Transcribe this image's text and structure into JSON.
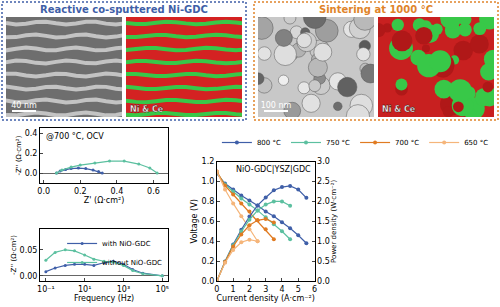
{
  "panels": [
    {
      "title": "Reactive co-sputtered Ni-GDC",
      "color": "#3f5fa8",
      "scale_bar": "40 nm",
      "map_label": "Ni & Ce"
    },
    {
      "title": "Sintering at 1000 °C",
      "color": "#e0842a",
      "scale_bar": "100 nm",
      "map_label": "Ni & Ce"
    }
  ],
  "chart_data": [
    {
      "type": "line",
      "annotation": "@700 °C, OCV",
      "x_label": "Z' (Ω·cm²)",
      "y_label": "-Z'' (Ω·cm²)",
      "xlim": [
        -0.02,
        0.68
      ],
      "xticks": [
        {
          "value": 0,
          "label": "0.0"
        },
        0.2,
        0.4,
        0.6
      ],
      "ylim": [
        -0.1,
        0.45
      ],
      "yticks": [
        {
          "value": 0,
          "label": "0.0"
        },
        0.2,
        0.4
      ],
      "grid": false,
      "marker": "circle",
      "line_style": "solid",
      "series": [
        {
          "name": "with NiO-GDC",
          "color": "#3f5fa8",
          "x": [
            0.07,
            0.09,
            0.12,
            0.15,
            0.19,
            0.23,
            0.27,
            0.3,
            0.32
          ],
          "values": [
            0,
            0.02,
            0.035,
            0.045,
            0.05,
            0.045,
            0.03,
            0.015,
            0
          ]
        },
        {
          "name": "without NiO-GDC",
          "color": "#5cc0a0",
          "x": [
            0.07,
            0.1,
            0.15,
            0.2,
            0.28,
            0.36,
            0.44,
            0.52,
            0.58,
            0.62
          ],
          "values": [
            0,
            0.03,
            0.06,
            0.08,
            0.1,
            0.12,
            0.12,
            0.09,
            0.05,
            0
          ]
        }
      ]
    },
    {
      "type": "line",
      "log": "x",
      "x_label": "Frequency (Hz)",
      "y_label": "-Z'' (Ω·cm²)",
      "x": [
        0.1,
        0.3,
        1,
        3,
        10,
        30,
        100,
        300,
        1000,
        3000,
        10000,
        100000
      ],
      "xlim": [
        0.05,
        200000
      ],
      "xticks": [
        {
          "value": 0.1,
          "label": "10⁻¹"
        },
        {
          "value": 10,
          "label": "10¹"
        },
        {
          "value": 1000,
          "label": "10³"
        },
        {
          "value": 100000,
          "label": "10⁵"
        }
      ],
      "ylim": [
        -0.01,
        0.09
      ],
      "yticks": [
        {
          "value": 0,
          "label": "0.00"
        },
        0.05
      ],
      "grid": false,
      "legend": "upper right",
      "marker": "circle",
      "line_style": "solid",
      "series": [
        {
          "name": "with NiO-GDC",
          "color": "#3f5fa8",
          "values": [
            0.008,
            0.015,
            0.02,
            0.022,
            0.022,
            0.02,
            0.025,
            0.028,
            0.022,
            0.012,
            0.005,
            0
          ]
        },
        {
          "name": "without NiO-GDC",
          "color": "#5cc0a0",
          "values": [
            0.03,
            0.045,
            0.05,
            0.048,
            0.04,
            0.032,
            0.028,
            0.026,
            0.02,
            0.01,
            0.004,
            0
          ]
        }
      ]
    },
    {
      "type": "line",
      "title": "NiO-GDC|YSZ|GDC",
      "x_label": "Current density (A·cm⁻²)",
      "y_label": "Voltage (V)",
      "y2_label": "Power density (W·cm⁻²)",
      "xlim": [
        0,
        6
      ],
      "xticks": [
        0,
        1,
        2,
        3,
        4,
        5,
        6
      ],
      "ylim": [
        0,
        1.2
      ],
      "yticks": [
        {
          "value": 0,
          "label": "0.0"
        },
        0.2,
        0.4,
        0.6,
        0.8,
        {
          "value": 1,
          "label": "1.0"
        },
        1.2
      ],
      "y2lim": [
        0,
        3
      ],
      "y2ticks": [
        {
          "value": 0,
          "label": "0.0"
        },
        0.5,
        {
          "value": 1,
          "label": "1.0"
        },
        1.5,
        {
          "value": 2,
          "label": "2.0"
        },
        2.5,
        {
          "value": 3,
          "label": "3.0"
        }
      ],
      "grid": false,
      "legend": "top",
      "marker": "circle",
      "line_style": "solid",
      "series": [
        {
          "name": "800 °C",
          "color": "#3f5fa8",
          "x": [
            0,
            0.5,
            1,
            1.5,
            2,
            2.5,
            3,
            3.5,
            4,
            4.5,
            5,
            5.5
          ],
          "values": [
            1.08,
            0.98,
            0.92,
            0.86,
            0.81,
            0.76,
            0.7,
            0.65,
            0.59,
            0.53,
            0.46,
            0.38
          ],
          "power": [
            0,
            0.49,
            0.92,
            1.29,
            1.62,
            1.9,
            2.1,
            2.28,
            2.36,
            2.39,
            2.3,
            2.09
          ]
        },
        {
          "name": "750 °C",
          "color": "#5cc0a0",
          "x": [
            0,
            0.5,
            1,
            1.5,
            2,
            2.5,
            3,
            3.5,
            4,
            4.5
          ],
          "values": [
            1.09,
            0.97,
            0.9,
            0.83,
            0.77,
            0.71,
            0.64,
            0.57,
            0.5,
            0.42
          ],
          "power": [
            0,
            0.485,
            0.9,
            1.245,
            1.54,
            1.775,
            1.92,
            2.0,
            2.0,
            1.89
          ]
        },
        {
          "name": "700 °C",
          "color": "#e07b22",
          "x": [
            0,
            0.5,
            1,
            1.5,
            2,
            2.5,
            3,
            3.5
          ],
          "values": [
            1.1,
            0.96,
            0.87,
            0.78,
            0.7,
            0.61,
            0.52,
            0.42
          ],
          "power": [
            0,
            0.48,
            0.87,
            1.17,
            1.4,
            1.525,
            1.56,
            1.47
          ]
        },
        {
          "name": "650 °C",
          "color": "#f5b57a",
          "x": [
            0,
            0.5,
            1,
            1.5,
            2,
            2.5
          ],
          "values": [
            1.1,
            0.92,
            0.78,
            0.65,
            0.52,
            0.4
          ],
          "power": [
            0,
            0.46,
            0.78,
            0.975,
            1.04,
            1.0
          ]
        }
      ]
    }
  ]
}
